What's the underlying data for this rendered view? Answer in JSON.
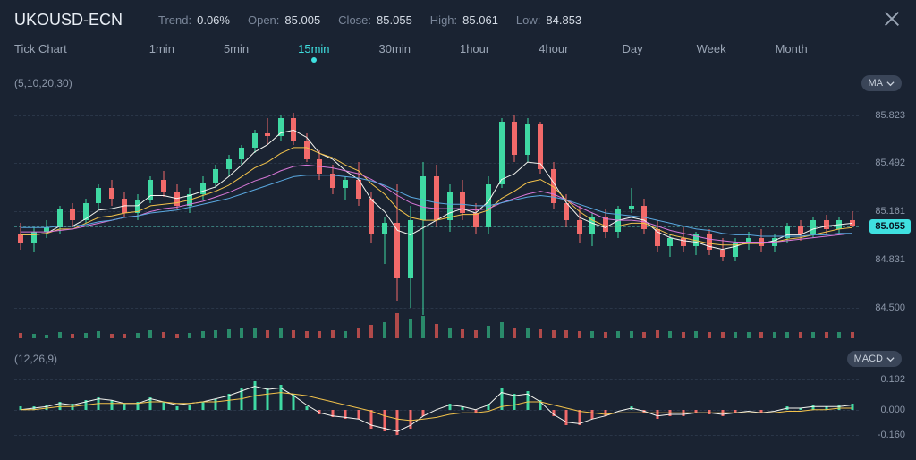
{
  "header": {
    "symbol": "UKOUSD-ECN",
    "stats": [
      {
        "label": "Trend:",
        "value": "0.06%"
      },
      {
        "label": "Open:",
        "value": "85.005"
      },
      {
        "label": "Close:",
        "value": "85.055"
      },
      {
        "label": "High:",
        "value": "85.061"
      },
      {
        "label": "Low:",
        "value": "84.853"
      }
    ]
  },
  "timeframes": {
    "items": [
      "Tick Chart",
      "1min",
      "5min",
      "15min",
      "30min",
      "1hour",
      "4hour",
      "Day",
      "Week",
      "Month"
    ],
    "active_index": 3
  },
  "indicator_top": {
    "badge": "MA",
    "params": "(5,10,20,30)"
  },
  "indicator_bottom": {
    "badge": "MACD",
    "params": "(12,26,9)"
  },
  "colors": {
    "bg": "#1a2332",
    "up": "#3fd9a3",
    "down": "#f26a6a",
    "grid": "#2a3648",
    "accent": "#3fe0e0",
    "ma5": "#f5f5f0",
    "ma10": "#f2c24b",
    "ma20": "#d978d9",
    "ma30": "#5aa8e0",
    "macd_line": "#f5f5f0",
    "macd_signal": "#f2c24b",
    "vol_up": "#2a8a6a",
    "vol_down": "#b04a4a"
  },
  "price_chart": {
    "ymin": 84.35,
    "ymax": 85.95,
    "ytick_labels": [
      "85.823",
      "85.492",
      "85.161",
      "84.831",
      "84.500"
    ],
    "ytick_values": [
      85.823,
      85.492,
      85.161,
      84.831,
      84.5
    ],
    "current_price": 85.055,
    "current_label": "85.055",
    "candles": [
      {
        "o": 85.0,
        "h": 85.08,
        "l": 84.9,
        "c": 84.95
      },
      {
        "o": 84.95,
        "h": 85.05,
        "l": 84.88,
        "c": 85.02
      },
      {
        "o": 85.02,
        "h": 85.1,
        "l": 84.98,
        "c": 85.05
      },
      {
        "o": 85.05,
        "h": 85.2,
        "l": 85.0,
        "c": 85.18
      },
      {
        "o": 85.18,
        "h": 85.22,
        "l": 85.05,
        "c": 85.1
      },
      {
        "o": 85.1,
        "h": 85.25,
        "l": 85.08,
        "c": 85.22
      },
      {
        "o": 85.22,
        "h": 85.35,
        "l": 85.18,
        "c": 85.32
      },
      {
        "o": 85.32,
        "h": 85.38,
        "l": 85.2,
        "c": 85.25
      },
      {
        "o": 85.25,
        "h": 85.3,
        "l": 85.12,
        "c": 85.15
      },
      {
        "o": 85.15,
        "h": 85.28,
        "l": 85.1,
        "c": 85.24
      },
      {
        "o": 85.24,
        "h": 85.4,
        "l": 85.22,
        "c": 85.38
      },
      {
        "o": 85.38,
        "h": 85.44,
        "l": 85.26,
        "c": 85.3
      },
      {
        "o": 85.3,
        "h": 85.35,
        "l": 85.18,
        "c": 85.2
      },
      {
        "o": 85.2,
        "h": 85.32,
        "l": 85.15,
        "c": 85.28
      },
      {
        "o": 85.28,
        "h": 85.4,
        "l": 85.24,
        "c": 85.36
      },
      {
        "o": 85.36,
        "h": 85.48,
        "l": 85.32,
        "c": 85.45
      },
      {
        "o": 85.45,
        "h": 85.55,
        "l": 85.4,
        "c": 85.52
      },
      {
        "o": 85.52,
        "h": 85.62,
        "l": 85.48,
        "c": 85.6
      },
      {
        "o": 85.6,
        "h": 85.72,
        "l": 85.56,
        "c": 85.7
      },
      {
        "o": 85.7,
        "h": 85.8,
        "l": 85.62,
        "c": 85.68
      },
      {
        "o": 85.68,
        "h": 85.82,
        "l": 85.64,
        "c": 85.8
      },
      {
        "o": 85.8,
        "h": 85.84,
        "l": 85.62,
        "c": 85.65
      },
      {
        "o": 85.65,
        "h": 85.7,
        "l": 85.5,
        "c": 85.52
      },
      {
        "o": 85.52,
        "h": 85.58,
        "l": 85.38,
        "c": 85.42
      },
      {
        "o": 85.42,
        "h": 85.48,
        "l": 85.28,
        "c": 85.32
      },
      {
        "o": 85.32,
        "h": 85.4,
        "l": 85.24,
        "c": 85.38
      },
      {
        "o": 85.38,
        "h": 85.5,
        "l": 85.2,
        "c": 85.25
      },
      {
        "o": 85.25,
        "h": 85.3,
        "l": 84.95,
        "c": 85.0
      },
      {
        "o": 85.0,
        "h": 85.12,
        "l": 84.8,
        "c": 85.08
      },
      {
        "o": 85.08,
        "h": 85.35,
        "l": 84.55,
        "c": 84.7
      },
      {
        "o": 84.7,
        "h": 85.2,
        "l": 84.5,
        "c": 85.1
      },
      {
        "o": 85.1,
        "h": 85.5,
        "l": 84.45,
        "c": 85.4
      },
      {
        "o": 85.4,
        "h": 85.48,
        "l": 85.05,
        "c": 85.1
      },
      {
        "o": 85.1,
        "h": 85.35,
        "l": 85.02,
        "c": 85.3
      },
      {
        "o": 85.3,
        "h": 85.38,
        "l": 85.1,
        "c": 85.15
      },
      {
        "o": 85.15,
        "h": 85.22,
        "l": 85.0,
        "c": 85.05
      },
      {
        "o": 85.05,
        "h": 85.4,
        "l": 85.0,
        "c": 85.35
      },
      {
        "o": 85.35,
        "h": 85.8,
        "l": 85.32,
        "c": 85.78
      },
      {
        "o": 85.78,
        "h": 85.82,
        "l": 85.5,
        "c": 85.55
      },
      {
        "o": 85.55,
        "h": 85.8,
        "l": 85.5,
        "c": 85.76
      },
      {
        "o": 85.76,
        "h": 85.78,
        "l": 85.42,
        "c": 85.45
      },
      {
        "o": 85.45,
        "h": 85.5,
        "l": 85.18,
        "c": 85.22
      },
      {
        "o": 85.22,
        "h": 85.28,
        "l": 85.05,
        "c": 85.1
      },
      {
        "o": 85.1,
        "h": 85.2,
        "l": 84.95,
        "c": 85.0
      },
      {
        "o": 85.0,
        "h": 85.15,
        "l": 84.92,
        "c": 85.12
      },
      {
        "o": 85.12,
        "h": 85.18,
        "l": 84.98,
        "c": 85.02
      },
      {
        "o": 85.02,
        "h": 85.2,
        "l": 84.98,
        "c": 85.18
      },
      {
        "o": 85.18,
        "h": 85.32,
        "l": 85.15,
        "c": 85.2
      },
      {
        "o": 85.2,
        "h": 85.25,
        "l": 85.0,
        "c": 85.04
      },
      {
        "o": 85.04,
        "h": 85.1,
        "l": 84.88,
        "c": 84.92
      },
      {
        "o": 84.92,
        "h": 85.0,
        "l": 84.85,
        "c": 84.98
      },
      {
        "o": 84.98,
        "h": 85.05,
        "l": 84.88,
        "c": 84.92
      },
      {
        "o": 84.92,
        "h": 85.02,
        "l": 84.86,
        "c": 85.0
      },
      {
        "o": 85.0,
        "h": 85.04,
        "l": 84.86,
        "c": 84.9
      },
      {
        "o": 84.9,
        "h": 84.98,
        "l": 84.82,
        "c": 84.85
      },
      {
        "o": 84.85,
        "h": 84.98,
        "l": 84.82,
        "c": 84.95
      },
      {
        "o": 84.95,
        "h": 85.02,
        "l": 84.9,
        "c": 84.98
      },
      {
        "o": 84.98,
        "h": 85.04,
        "l": 84.88,
        "c": 84.92
      },
      {
        "o": 84.92,
        "h": 85.0,
        "l": 84.88,
        "c": 84.98
      },
      {
        "o": 84.98,
        "h": 85.08,
        "l": 84.95,
        "c": 85.06
      },
      {
        "o": 85.06,
        "h": 85.1,
        "l": 84.96,
        "c": 85.0
      },
      {
        "o": 85.0,
        "h": 85.12,
        "l": 84.98,
        "c": 85.1
      },
      {
        "o": 85.1,
        "h": 85.14,
        "l": 85.0,
        "c": 85.04
      },
      {
        "o": 85.04,
        "h": 85.12,
        "l": 85.0,
        "c": 85.1
      },
      {
        "o": 85.1,
        "h": 85.16,
        "l": 85.05,
        "c": 85.06
      }
    ],
    "volumes": [
      6,
      5,
      4,
      7,
      5,
      6,
      8,
      5,
      5,
      6,
      9,
      7,
      5,
      6,
      8,
      9,
      10,
      11,
      12,
      9,
      11,
      9,
      8,
      8,
      9,
      8,
      12,
      15,
      18,
      28,
      22,
      25,
      16,
      12,
      10,
      9,
      14,
      18,
      12,
      11,
      10,
      9,
      9,
      8,
      8,
      7,
      8,
      8,
      7,
      9,
      8,
      7,
      8,
      7,
      7,
      7,
      7,
      7,
      7,
      7,
      7,
      7,
      7,
      7,
      7
    ],
    "volume_max": 30,
    "ma5": [
      85.0,
      85.0,
      85.01,
      85.06,
      85.06,
      85.11,
      85.17,
      85.18,
      85.2,
      85.2,
      85.27,
      85.27,
      85.25,
      85.27,
      85.3,
      85.33,
      85.4,
      85.48,
      85.57,
      85.62,
      85.7,
      85.72,
      85.67,
      85.56,
      85.52,
      85.44,
      85.38,
      85.24,
      85.16,
      85.03,
      85.0,
      85.05,
      85.1,
      85.15,
      85.18,
      85.15,
      85.23,
      85.38,
      85.42,
      85.5,
      85.49,
      85.36,
      85.22,
      85.12,
      85.08,
      85.05,
      85.1,
      85.12,
      85.1,
      85.02,
      84.98,
      84.96,
      84.95,
      84.92,
      84.9,
      84.92,
      84.95,
      84.94,
      84.96,
      85.0,
      85.0,
      85.04,
      85.06,
      85.07,
      85.08
    ],
    "ma10": [
      85.0,
      85.0,
      85.01,
      85.04,
      85.04,
      85.08,
      85.12,
      85.13,
      85.15,
      85.16,
      85.2,
      85.21,
      85.22,
      85.24,
      85.27,
      85.3,
      85.34,
      85.4,
      85.46,
      85.5,
      85.56,
      85.6,
      85.6,
      85.56,
      85.53,
      85.48,
      85.44,
      85.35,
      85.28,
      85.18,
      85.12,
      85.1,
      85.1,
      85.12,
      85.14,
      85.14,
      85.17,
      85.25,
      85.3,
      85.36,
      85.38,
      85.33,
      85.24,
      85.16,
      85.1,
      85.06,
      85.06,
      85.08,
      85.08,
      85.04,
      85.0,
      84.98,
      84.96,
      84.94,
      84.93,
      84.93,
      84.94,
      84.94,
      84.95,
      84.97,
      84.98,
      85.0,
      85.02,
      85.04,
      85.05
    ],
    "ma20": [
      85.02,
      85.02,
      85.02,
      85.03,
      85.04,
      85.06,
      85.08,
      85.1,
      85.12,
      85.13,
      85.16,
      85.18,
      85.19,
      85.21,
      85.23,
      85.26,
      85.29,
      85.33,
      85.37,
      85.4,
      85.44,
      85.47,
      85.48,
      85.47,
      85.46,
      85.44,
      85.42,
      85.38,
      85.33,
      85.27,
      85.22,
      85.19,
      85.18,
      85.18,
      85.18,
      85.17,
      85.18,
      85.22,
      85.25,
      85.28,
      85.3,
      85.28,
      85.24,
      85.19,
      85.15,
      85.11,
      85.1,
      85.1,
      85.09,
      85.06,
      85.03,
      85.01,
      84.99,
      84.97,
      84.96,
      84.95,
      84.95,
      84.95,
      84.95,
      84.96,
      84.97,
      84.98,
      84.99,
      85.0,
      85.01
    ],
    "ma30": [
      85.05,
      85.05,
      85.05,
      85.06,
      85.06,
      85.07,
      85.09,
      85.1,
      85.12,
      85.13,
      85.15,
      85.16,
      85.17,
      85.19,
      85.21,
      85.23,
      85.25,
      85.28,
      85.31,
      85.34,
      85.37,
      85.4,
      85.41,
      85.41,
      85.41,
      85.4,
      85.39,
      85.37,
      85.34,
      85.3,
      85.26,
      85.24,
      85.22,
      85.21,
      85.21,
      85.2,
      85.2,
      85.22,
      85.24,
      85.26,
      85.27,
      85.26,
      85.24,
      85.21,
      85.18,
      85.15,
      85.14,
      85.13,
      85.12,
      85.1,
      85.08,
      85.06,
      85.04,
      85.03,
      85.01,
      85.0,
      85.0,
      84.99,
      84.99,
      84.99,
      84.99,
      85.0,
      85.0,
      85.01,
      85.01
    ]
  },
  "macd_chart": {
    "ymin": -0.22,
    "ymax": 0.24,
    "ytick_labels": [
      "0.192",
      "0.000",
      "-0.160"
    ],
    "ytick_values": [
      0.192,
      0.0,
      -0.16
    ],
    "hist": [
      0.02,
      0.02,
      0.03,
      0.05,
      0.04,
      0.06,
      0.08,
      0.06,
      0.04,
      0.05,
      0.08,
      0.05,
      0.02,
      0.03,
      0.05,
      0.07,
      0.1,
      0.14,
      0.18,
      0.14,
      0.16,
      0.1,
      0.02,
      -0.03,
      -0.05,
      -0.06,
      -0.06,
      -0.12,
      -0.14,
      -0.16,
      -0.12,
      -0.04,
      0.0,
      0.04,
      0.02,
      -0.02,
      0.04,
      0.14,
      0.1,
      0.12,
      0.06,
      -0.04,
      -0.1,
      -0.1,
      -0.06,
      -0.04,
      0.0,
      0.02,
      -0.02,
      -0.06,
      -0.04,
      -0.04,
      -0.02,
      -0.03,
      -0.04,
      -0.02,
      0.0,
      -0.02,
      0.0,
      0.02,
      0.01,
      0.03,
      0.02,
      0.03,
      0.04
    ],
    "macd": [
      0.0,
      0.01,
      0.02,
      0.04,
      0.03,
      0.05,
      0.07,
      0.06,
      0.04,
      0.04,
      0.07,
      0.05,
      0.03,
      0.04,
      0.05,
      0.07,
      0.09,
      0.12,
      0.15,
      0.13,
      0.14,
      0.09,
      0.03,
      -0.02,
      -0.04,
      -0.05,
      -0.06,
      -0.1,
      -0.12,
      -0.14,
      -0.1,
      -0.04,
      0.0,
      0.03,
      0.02,
      0.0,
      0.03,
      0.11,
      0.09,
      0.1,
      0.05,
      -0.03,
      -0.08,
      -0.09,
      -0.06,
      -0.04,
      -0.01,
      0.01,
      -0.01,
      -0.04,
      -0.03,
      -0.03,
      -0.02,
      -0.02,
      -0.03,
      -0.02,
      -0.01,
      -0.02,
      -0.01,
      0.01,
      0.01,
      0.02,
      0.02,
      0.02,
      0.03
    ],
    "signal": [
      0.0,
      0.0,
      0.01,
      0.02,
      0.02,
      0.03,
      0.04,
      0.04,
      0.04,
      0.04,
      0.05,
      0.05,
      0.04,
      0.04,
      0.05,
      0.05,
      0.06,
      0.07,
      0.09,
      0.1,
      0.11,
      0.1,
      0.09,
      0.07,
      0.05,
      0.03,
      0.01,
      -0.01,
      -0.04,
      -0.06,
      -0.07,
      -0.06,
      -0.05,
      -0.03,
      -0.02,
      -0.02,
      -0.01,
      0.02,
      0.03,
      0.05,
      0.05,
      0.03,
      0.01,
      -0.01,
      -0.02,
      -0.03,
      -0.02,
      -0.02,
      -0.02,
      -0.02,
      -0.02,
      -0.02,
      -0.02,
      -0.02,
      -0.02,
      -0.02,
      -0.02,
      -0.02,
      -0.02,
      -0.01,
      -0.01,
      0.0,
      0.0,
      0.01,
      0.01
    ]
  }
}
